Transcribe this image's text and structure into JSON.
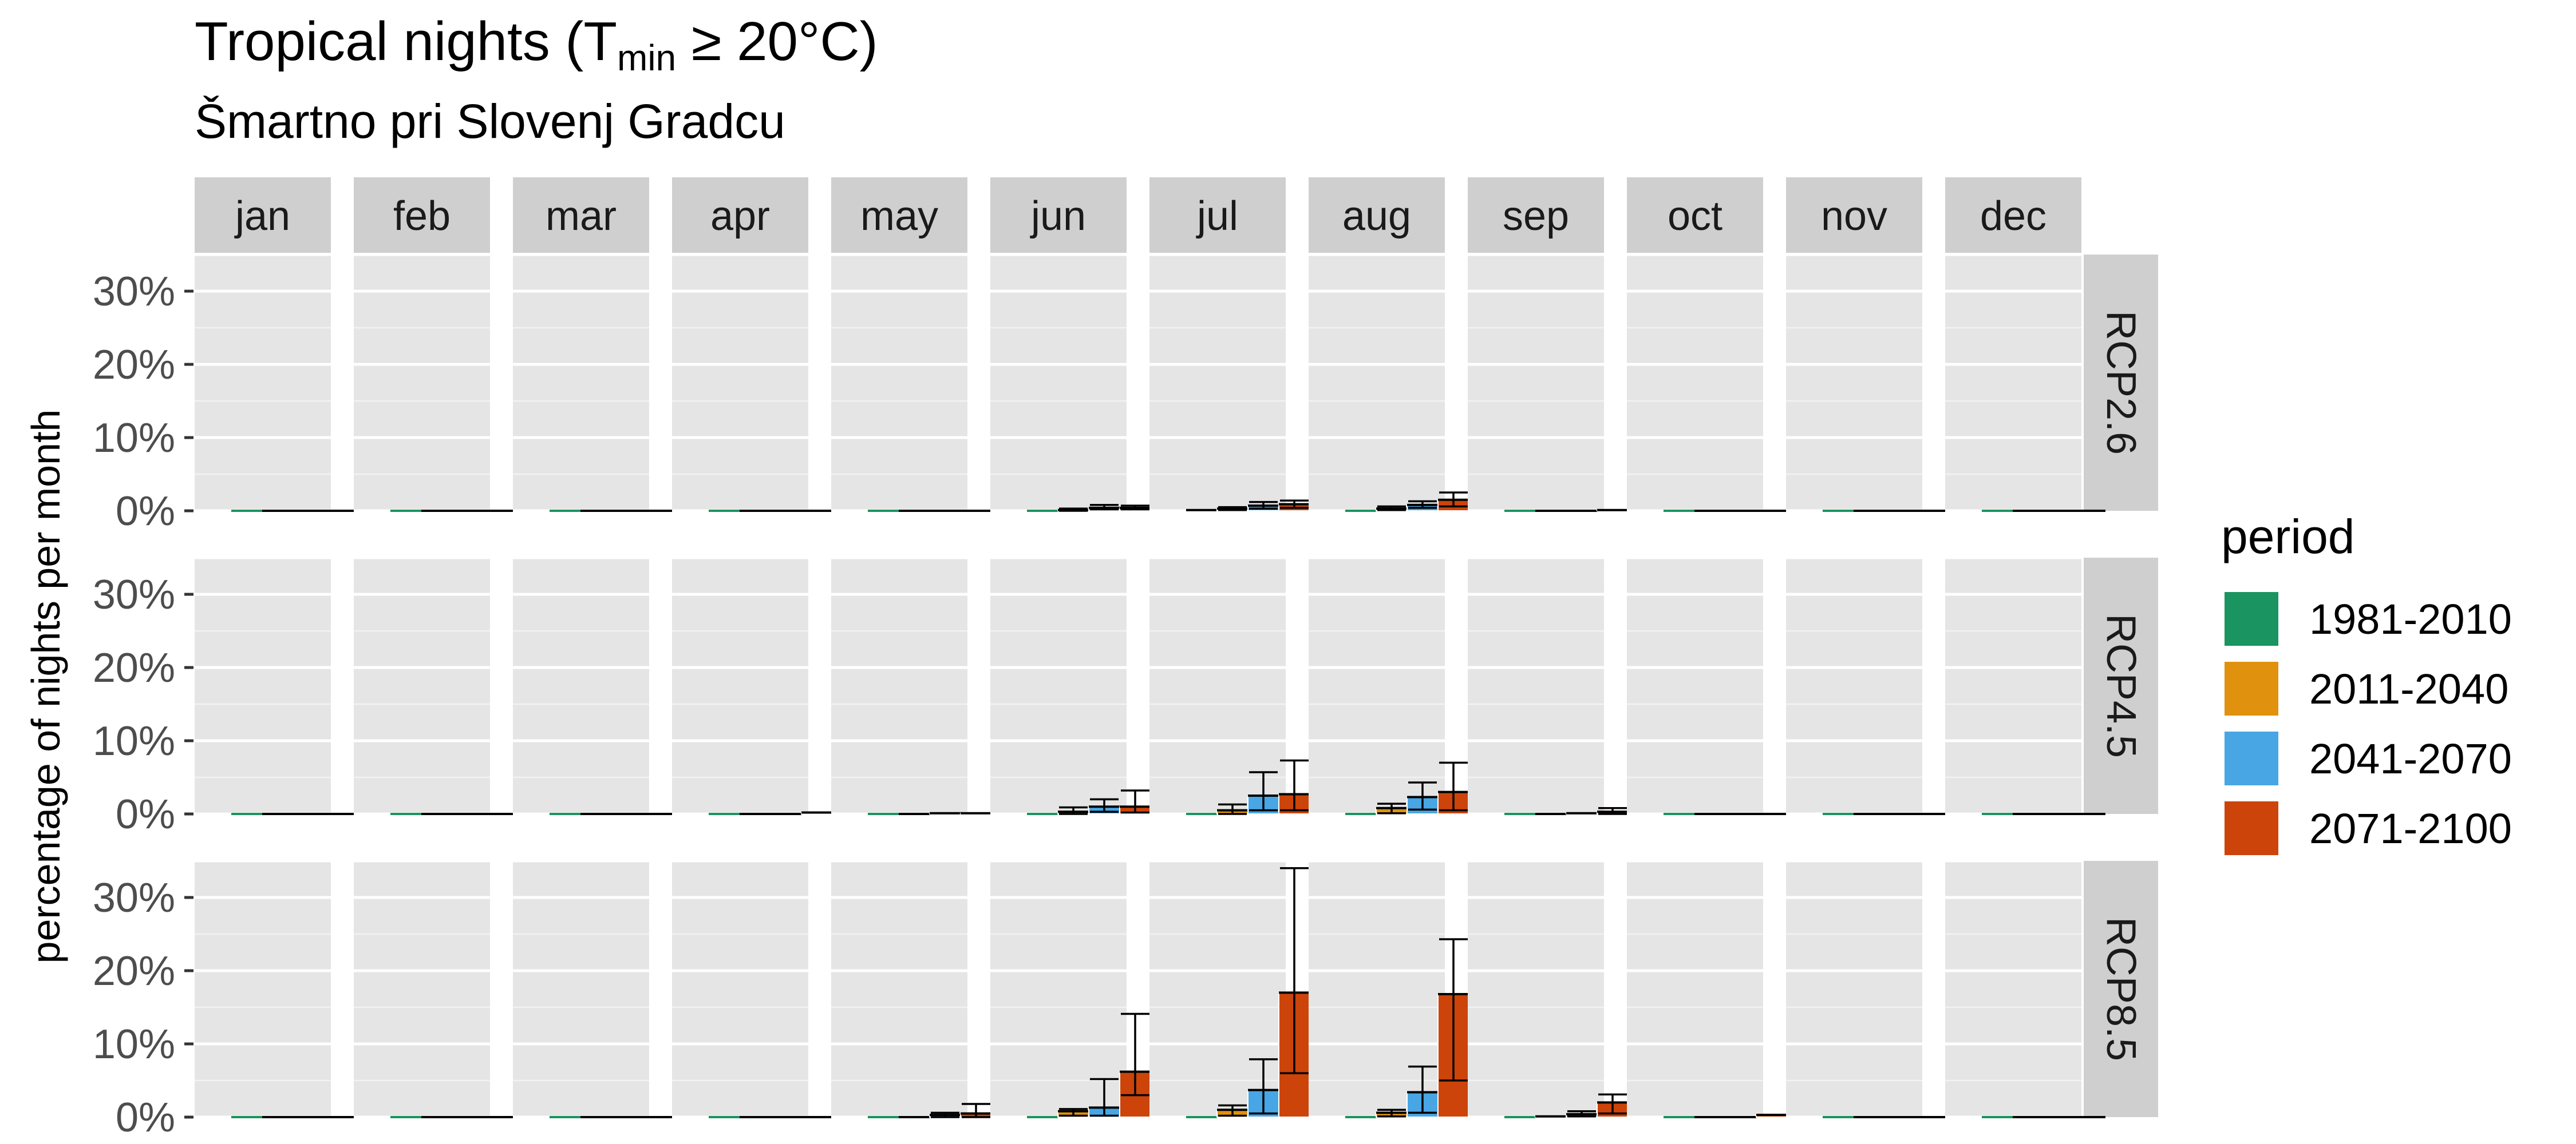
{
  "title": {
    "main": "Tropical nights (T",
    "sub": "min",
    "rest": " ≥ 20°C)"
  },
  "subtitle": "Šmartno pri Slovenj Gradcu",
  "colors": {
    "1981-2010": "#1a9460",
    "2011-2040": "#e0910e",
    "2041-2070": "#48a6e4",
    "2071-2100": "#cc4409",
    "panel_bg": "#e5e5e5",
    "strip_bg": "#cfcfcf"
  },
  "legend": {
    "title": "period",
    "items": [
      {
        "label": "1981-2010",
        "color": "#1a9460"
      },
      {
        "label": "2011-2040",
        "color": "#e0910e"
      },
      {
        "label": "2041-2070",
        "color": "#48a6e4"
      },
      {
        "label": "2071-2100",
        "color": "#cc4409"
      }
    ]
  },
  "chart_data": {
    "type": "bar",
    "facet_columns": [
      "jan",
      "feb",
      "mar",
      "apr",
      "may",
      "jun",
      "jul",
      "aug",
      "sep",
      "oct",
      "nov",
      "dec"
    ],
    "facet_rows": [
      "RCP2.6",
      "RCP4.5",
      "RCP8.5"
    ],
    "periods": [
      "1981-2010",
      "2011-2040",
      "2041-2070",
      "2071-2100"
    ],
    "ylabel": "percentage of nights per month",
    "ylim": [
      0,
      35
    ],
    "yticks": [
      0,
      10,
      20,
      30
    ],
    "ytick_labels": [
      "0%",
      "10%",
      "20%",
      "30%"
    ],
    "grid": true,
    "legend_position": "right",
    "rows": {
      "RCP2.6": {
        "values": {
          "jan": [
            0,
            0,
            0,
            0
          ],
          "feb": [
            0,
            0,
            0,
            0
          ],
          "mar": [
            0,
            0,
            0,
            0
          ],
          "apr": [
            0,
            0,
            0,
            0
          ],
          "may": [
            0,
            0,
            0,
            0
          ],
          "jun": [
            0,
            0.1,
            0.4,
            0.4
          ],
          "jul": [
            0.1,
            0.3,
            0.7,
            0.9
          ],
          "aug": [
            0,
            0.3,
            0.8,
            1.5
          ],
          "sep": [
            0,
            0,
            0,
            0.1
          ],
          "oct": [
            0,
            0,
            0,
            0
          ],
          "nov": [
            0,
            0,
            0,
            0
          ],
          "dec": [
            0,
            0,
            0,
            0
          ]
        },
        "errors": {
          "jun": [
            null,
            [
              0,
              0.3
            ],
            [
              0.2,
              0.8
            ],
            [
              0.2,
              0.7
            ]
          ],
          "jul": [
            null,
            [
              0.1,
              0.5
            ],
            [
              0.3,
              1.2
            ],
            [
              0.4,
              1.4
            ]
          ],
          "aug": [
            null,
            [
              0.1,
              0.6
            ],
            [
              0.4,
              1.3
            ],
            [
              0.6,
              2.5
            ]
          ]
        }
      },
      "RCP4.5": {
        "values": {
          "jan": [
            0,
            0,
            0,
            0
          ],
          "feb": [
            0,
            0,
            0,
            0
          ],
          "mar": [
            0,
            0,
            0,
            0
          ],
          "apr": [
            0,
            0,
            0,
            0.2
          ],
          "may": [
            0,
            0,
            0.1,
            0.1
          ],
          "jun": [
            0,
            0.3,
            1.0,
            1.0
          ],
          "jul": [
            0,
            0.5,
            2.5,
            2.7
          ],
          "aug": [
            0,
            0.8,
            2.3,
            3.0
          ],
          "sep": [
            0,
            0,
            0.1,
            0.3
          ],
          "oct": [
            0,
            0,
            0,
            0
          ],
          "nov": [
            0,
            0,
            0,
            0
          ],
          "dec": [
            0,
            0,
            0,
            0
          ]
        },
        "errors": {
          "jun": [
            null,
            [
              0,
              0.9
            ],
            [
              0.3,
              2.0
            ],
            [
              0.2,
              3.2
            ]
          ],
          "jul": [
            null,
            [
              0,
              1.3
            ],
            [
              0.5,
              5.7
            ],
            [
              0.5,
              7.3
            ]
          ],
          "aug": [
            null,
            [
              0.1,
              1.4
            ],
            [
              0.6,
              4.3
            ],
            [
              0.5,
              7.0
            ]
          ],
          "sep": [
            null,
            null,
            null,
            [
              0,
              0.8
            ]
          ]
        }
      },
      "RCP8.5": {
        "values": {
          "jan": [
            0,
            0,
            0,
            0
          ],
          "feb": [
            0,
            0,
            0,
            0
          ],
          "mar": [
            0,
            0,
            0,
            0
          ],
          "apr": [
            0,
            0,
            0,
            0
          ],
          "may": [
            0,
            0,
            0.3,
            0.5
          ],
          "jun": [
            0,
            0.8,
            1.3,
            6.2
          ],
          "jul": [
            0,
            1.0,
            3.7,
            17.0
          ],
          "aug": [
            0,
            0.6,
            3.4,
            16.8
          ],
          "sep": [
            0,
            0.1,
            0.4,
            2.0
          ],
          "oct": [
            0,
            0,
            0,
            0.3
          ],
          "nov": [
            0,
            0,
            0,
            0
          ],
          "dec": [
            0,
            0,
            0,
            0
          ]
        },
        "errors": {
          "may": [
            null,
            null,
            [
              0,
              0.6
            ],
            [
              0,
              1.8
            ]
          ],
          "jun": [
            null,
            [
              0.2,
              1.1
            ],
            [
              0.2,
              5.2
            ],
            [
              3.0,
              14.1
            ]
          ],
          "jul": [
            null,
            [
              0.2,
              1.6
            ],
            [
              0.5,
              7.9
            ],
            [
              6.0,
              34.0
            ]
          ],
          "aug": [
            null,
            [
              0.1,
              1.0
            ],
            [
              0.6,
              6.9
            ],
            [
              5.0,
              24.3
            ]
          ],
          "sep": [
            null,
            null,
            [
              0.1,
              0.8
            ],
            [
              0.5,
              3.1
            ]
          ]
        }
      }
    }
  }
}
